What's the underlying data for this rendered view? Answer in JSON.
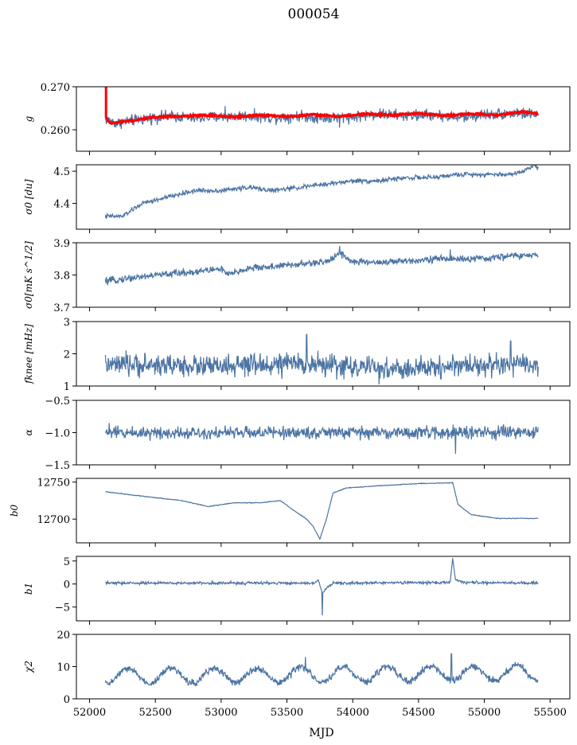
{
  "figure": {
    "title": "000054",
    "xlabel": "MJD"
  },
  "colors": {
    "series": "#4c74a3",
    "fit": "#ff0000",
    "axis": "#000000"
  },
  "chart_data": {
    "type": "line",
    "xlim": [
      51900,
      55650
    ],
    "xticks": [
      52000,
      52500,
      53000,
      53500,
      54000,
      54500,
      55000,
      55500
    ],
    "xtick_labels": [
      "52000",
      "52500",
      "53000",
      "53500",
      "54000",
      "54500",
      "55000",
      "55500"
    ],
    "x_start": 52120,
    "x_end": 55410,
    "panels": [
      {
        "id": "g",
        "ylabel": "g",
        "ylim": [
          0.255,
          0.27
        ],
        "yticks": [
          0.26,
          0.27
        ],
        "ytick_labels": [
          "0.260",
          "0.270"
        ],
        "baseline": [
          [
            52120,
            0.2625
          ],
          [
            52200,
            0.2615
          ],
          [
            52400,
            0.2625
          ],
          [
            52600,
            0.2632
          ],
          [
            52800,
            0.2627
          ],
          [
            53000,
            0.263
          ],
          [
            53200,
            0.2632
          ],
          [
            53400,
            0.2628
          ],
          [
            53600,
            0.2632
          ],
          [
            53800,
            0.2627
          ],
          [
            54000,
            0.263
          ],
          [
            54200,
            0.2637
          ],
          [
            54400,
            0.2632
          ],
          [
            54600,
            0.2635
          ],
          [
            54800,
            0.2628
          ],
          [
            55000,
            0.2635
          ],
          [
            55200,
            0.2638
          ],
          [
            55410,
            0.2636
          ]
        ],
        "noise": 0.0011,
        "spikes": [
          [
            53030,
            0.2655
          ],
          [
            53900,
            0.2605
          ],
          [
            55250,
            0.265
          ]
        ],
        "fit": {
          "baseline": [
            [
              52120,
              0.2628
            ],
            [
              52160,
              0.2615
            ],
            [
              52300,
              0.262
            ],
            [
              52500,
              0.263
            ],
            [
              52700,
              0.2631
            ],
            [
              52900,
              0.2634
            ],
            [
              53100,
              0.263
            ],
            [
              53300,
              0.2634
            ],
            [
              53500,
              0.2631
            ],
            [
              53700,
              0.2635
            ],
            [
              53900,
              0.2631
            ],
            [
              54100,
              0.2637
            ],
            [
              54300,
              0.2634
            ],
            [
              54500,
              0.2638
            ],
            [
              54700,
              0.2633
            ],
            [
              54900,
              0.2637
            ],
            [
              55100,
              0.2634
            ],
            [
              55300,
              0.2642
            ],
            [
              55410,
              0.2637
            ]
          ],
          "spike": [
            52125,
            0.27
          ]
        }
      },
      {
        "id": "sigma0_du",
        "ylabel": "σ0 [du]",
        "ylim": [
          4.32,
          4.52
        ],
        "yticks": [
          4.4,
          4.5
        ],
        "ytick_labels": [
          "4.4",
          "4.5"
        ],
        "baseline": [
          [
            52120,
            4.36
          ],
          [
            52250,
            4.36
          ],
          [
            52400,
            4.4
          ],
          [
            52600,
            4.42
          ],
          [
            52800,
            4.44
          ],
          [
            53000,
            4.44
          ],
          [
            53200,
            4.45
          ],
          [
            53400,
            4.44
          ],
          [
            53600,
            4.45
          ],
          [
            53800,
            4.46
          ],
          [
            54000,
            4.47
          ],
          [
            54200,
            4.47
          ],
          [
            54400,
            4.48
          ],
          [
            54600,
            4.48
          ],
          [
            54800,
            4.49
          ],
          [
            55000,
            4.49
          ],
          [
            55200,
            4.49
          ],
          [
            55300,
            4.5
          ],
          [
            55380,
            4.52
          ],
          [
            55410,
            4.51
          ]
        ],
        "noise": 0.006,
        "spikes": []
      },
      {
        "id": "sigma0_mK",
        "ylabel": "σ0[mK s^1/2]",
        "ylim": [
          3.7,
          3.9
        ],
        "yticks": [
          3.7,
          3.8,
          3.9
        ],
        "ytick_labels": [
          "3.7",
          "3.8",
          "3.9"
        ],
        "baseline": [
          [
            52120,
            3.78
          ],
          [
            52300,
            3.79
          ],
          [
            52500,
            3.8
          ],
          [
            52800,
            3.81
          ],
          [
            53000,
            3.82
          ],
          [
            53050,
            3.8
          ],
          [
            53200,
            3.82
          ],
          [
            53500,
            3.83
          ],
          [
            53800,
            3.84
          ],
          [
            53900,
            3.87
          ],
          [
            54000,
            3.84
          ],
          [
            54300,
            3.84
          ],
          [
            54600,
            3.85
          ],
          [
            54800,
            3.85
          ],
          [
            55000,
            3.85
          ],
          [
            55200,
            3.86
          ],
          [
            55410,
            3.86
          ]
        ],
        "noise": 0.009,
        "spikes": [
          [
            53900,
            3.89
          ],
          [
            54740,
            3.88
          ]
        ]
      },
      {
        "id": "fknee",
        "ylabel": "fknee [mHz]",
        "ylim": [
          1,
          3
        ],
        "yticks": [
          1,
          2,
          3
        ],
        "ytick_labels": [
          "1",
          "2",
          "3"
        ],
        "baseline": [
          [
            52120,
            1.65
          ],
          [
            52600,
            1.65
          ],
          [
            53000,
            1.6
          ],
          [
            53600,
            1.7
          ],
          [
            54000,
            1.6
          ],
          [
            54400,
            1.5
          ],
          [
            54800,
            1.65
          ],
          [
            55410,
            1.65
          ]
        ],
        "noise": 0.28,
        "spikes": [
          [
            53650,
            2.6
          ],
          [
            54200,
            1.05
          ],
          [
            55200,
            2.4
          ]
        ]
      },
      {
        "id": "alpha",
        "ylabel": "α",
        "ylim": [
          -1.5,
          -0.5
        ],
        "yticks": [
          -1.5,
          -1.0,
          -0.5
        ],
        "ytick_labels": [
          "−1.5",
          "−1.0",
          "−0.5"
        ],
        "baseline": [
          [
            52120,
            -1.0
          ],
          [
            55410,
            -1.0
          ]
        ],
        "noise": 0.08,
        "spikes": [
          [
            54780,
            -1.33
          ],
          [
            52150,
            -0.85
          ]
        ]
      },
      {
        "id": "b0",
        "ylabel": "b0",
        "ylim": [
          12668,
          12755
        ],
        "yticks": [
          12700,
          12750
        ],
        "ytick_labels": [
          "12700",
          "12750"
        ],
        "baseline": [
          [
            52120,
            12737
          ],
          [
            52400,
            12731
          ],
          [
            52700,
            12725
          ],
          [
            52900,
            12717
          ],
          [
            53100,
            12722
          ],
          [
            53300,
            12722
          ],
          [
            53450,
            12725
          ],
          [
            53550,
            12712
          ],
          [
            53650,
            12700
          ],
          [
            53700,
            12690
          ],
          [
            53750,
            12673
          ],
          [
            53800,
            12700
          ],
          [
            53850,
            12735
          ],
          [
            53950,
            12742
          ],
          [
            54200,
            12745
          ],
          [
            54500,
            12748
          ],
          [
            54760,
            12749
          ],
          [
            54800,
            12720
          ],
          [
            54900,
            12706
          ],
          [
            55100,
            12701
          ],
          [
            55410,
            12701
          ]
        ],
        "noise": 0.4,
        "spikes": []
      },
      {
        "id": "b1",
        "ylabel": "b1",
        "ylim": [
          -8,
          6
        ],
        "yticks": [
          -5,
          0,
          5
        ],
        "ytick_labels": [
          "−5",
          "0",
          "5"
        ],
        "baseline": [
          [
            52120,
            0.2
          ],
          [
            53700,
            0.2
          ],
          [
            53740,
            0.8
          ],
          [
            53770,
            -2
          ],
          [
            53800,
            -1
          ],
          [
            53850,
            0.2
          ],
          [
            54740,
            0.3
          ],
          [
            54760,
            5.5
          ],
          [
            54780,
            1
          ],
          [
            54850,
            0.3
          ],
          [
            55410,
            0.2
          ]
        ],
        "noise": 0.25,
        "spikes": [
          [
            53770,
            -6.8
          ],
          [
            54760,
            5.6
          ]
        ]
      },
      {
        "id": "chi2",
        "ylabel": "χ2",
        "ylim": [
          0,
          20
        ],
        "yticks": [
          0,
          10,
          20
        ],
        "ytick_labels": [
          "0",
          "10",
          "20"
        ],
        "baseline": [
          [
            52120,
            7
          ],
          [
            55410,
            8
          ]
        ],
        "periodic": {
          "amplitude": 2.3,
          "period": 328,
          "phase": 52210
        },
        "noise": 0.9,
        "spikes": [
          [
            53640,
            13
          ],
          [
            54750,
            14
          ]
        ]
      }
    ]
  }
}
